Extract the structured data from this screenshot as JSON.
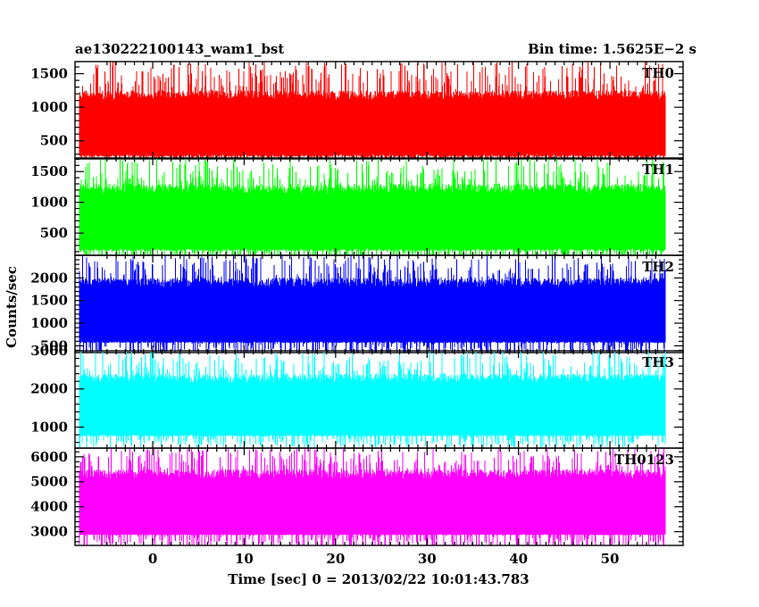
{
  "header": {
    "file_label": "ae130222100143_wam1_bst",
    "bin_label": "Bin time: 1.5625E−2 s"
  },
  "axes": {
    "ylabel": "Counts/sec",
    "xlabel": "Time [sec] 0 = 2013/02/22 10:01:43.783"
  },
  "chart_data": {
    "type": "line",
    "x_range": [
      -8.5,
      58
    ],
    "x_data_extent": [
      -8.0,
      56.0
    ],
    "x_ticks": [
      0,
      10,
      20,
      30,
      40,
      50
    ],
    "grid": false,
    "panels": [
      {
        "name": "TH0",
        "color": "#ff0000",
        "ylim": [
          230,
          1680
        ],
        "y_ticks": [
          500,
          1000,
          1500
        ],
        "series_summary": {
          "base_min": 100,
          "typical_low": 300,
          "typical_high": 1250,
          "peak": 1680
        }
      },
      {
        "name": "TH1",
        "color": "#00ff00",
        "ylim": [
          140,
          1720
        ],
        "y_ticks": [
          500,
          1000,
          1500
        ],
        "series_summary": {
          "base_min": 50,
          "typical_low": 250,
          "typical_high": 1300,
          "peak": 1720
        }
      },
      {
        "name": "TH2",
        "color": "#0000ff",
        "ylim": [
          350,
          2500
        ],
        "y_ticks": [
          500,
          1000,
          1500,
          2000
        ],
        "series_summary": {
          "base_min": 250,
          "typical_low": 600,
          "typical_high": 2000,
          "peak": 2500
        }
      },
      {
        "name": "TH3",
        "color": "#00ffff",
        "ylim": [
          450,
          3000
        ],
        "y_ticks": [
          1000,
          2000,
          3000
        ],
        "series_summary": {
          "base_min": 450,
          "typical_low": 800,
          "typical_high": 2400,
          "peak": 3000
        }
      },
      {
        "name": "TH0123",
        "color": "#ff00ff",
        "ylim": [
          2450,
          6350
        ],
        "y_ticks": [
          3000,
          4000,
          5000,
          6000
        ],
        "series_summary": {
          "base_min": 2300,
          "typical_low": 2900,
          "typical_high": 5500,
          "peak": 6350
        }
      }
    ]
  }
}
